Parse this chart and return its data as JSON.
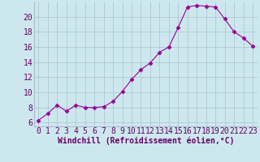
{
  "x": [
    0,
    1,
    2,
    3,
    4,
    5,
    6,
    7,
    8,
    9,
    10,
    11,
    12,
    13,
    14,
    15,
    16,
    17,
    18,
    19,
    20,
    21,
    22,
    23
  ],
  "y": [
    6.3,
    7.2,
    8.3,
    7.5,
    8.3,
    8.0,
    8.0,
    8.1,
    8.8,
    10.1,
    11.7,
    13.0,
    13.9,
    15.3,
    16.0,
    18.6,
    21.3,
    21.5,
    21.4,
    21.3,
    19.7,
    18.0,
    17.2,
    16.1
  ],
  "line_color": "#990099",
  "marker": "D",
  "marker_size": 2.5,
  "bg_color": "#cce8ee",
  "grid_color": "#aabbcc",
  "xlabel": "Windchill (Refroidissement éolien,°C)",
  "xlabel_color": "#660066",
  "tick_color": "#660066",
  "ylim": [
    5.5,
    22
  ],
  "xlim": [
    -0.5,
    23.5
  ],
  "yticks": [
    6,
    8,
    10,
    12,
    14,
    16,
    18,
    20
  ],
  "xticks": [
    0,
    1,
    2,
    3,
    4,
    5,
    6,
    7,
    8,
    9,
    10,
    11,
    12,
    13,
    14,
    15,
    16,
    17,
    18,
    19,
    20,
    21,
    22,
    23
  ],
  "tick_fontsize": 7,
  "xlabel_fontsize": 7
}
